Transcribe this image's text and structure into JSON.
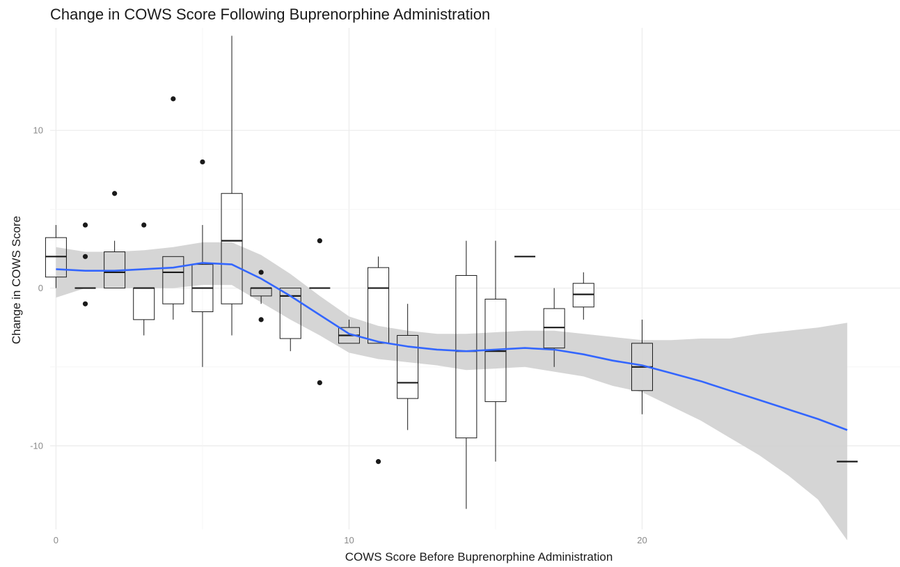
{
  "chart_data": {
    "type": "box",
    "title": "Change in COWS Score Following Buprenorphine Administration",
    "xlabel": "COWS Score Before Buprenorphine Administration",
    "ylabel": "Change in COWS Score",
    "x_ticks": [
      0,
      10,
      20
    ],
    "x_tick_labels": [
      "0",
      "10",
      "20"
    ],
    "y_ticks": [
      -10,
      0,
      10
    ],
    "y_tick_labels": [
      "-10",
      "0",
      "10"
    ],
    "xlim": [
      -0.2,
      28.8
    ],
    "ylim": [
      -15.3,
      16.5
    ],
    "grid": true,
    "legend": "none",
    "colors": {
      "smooth_line": "#3366ff",
      "ribbon": "#d3d3d3",
      "box_stroke": "#1a1a1a",
      "grid": "#ebebeb"
    },
    "boxes": [
      {
        "x": 0,
        "lower_whisker": 0,
        "q1": 0.7,
        "median": 2,
        "q3": 3.2,
        "upper_whisker": 4,
        "outliers": []
      },
      {
        "x": 1,
        "lower_whisker": 0,
        "q1": 0,
        "median": 0,
        "q3": 0,
        "upper_whisker": 0,
        "outliers": [
          4,
          2,
          -1
        ]
      },
      {
        "x": 2,
        "lower_whisker": 0,
        "q1": 0,
        "median": 1,
        "q3": 2.3,
        "upper_whisker": 3,
        "outliers": [
          6
        ]
      },
      {
        "x": 3,
        "lower_whisker": -3,
        "q1": -2,
        "median": 0,
        "q3": 0,
        "upper_whisker": 0,
        "outliers": [
          4
        ]
      },
      {
        "x": 4,
        "lower_whisker": -2,
        "q1": -1,
        "median": 1,
        "q3": 2,
        "upper_whisker": 2,
        "outliers": [
          12
        ]
      },
      {
        "x": 5,
        "lower_whisker": -5,
        "q1": -1.5,
        "median": 0,
        "q3": 1.5,
        "upper_whisker": 4,
        "outliers": [
          8
        ]
      },
      {
        "x": 6,
        "lower_whisker": -3,
        "q1": -1,
        "median": 3,
        "q3": 6,
        "upper_whisker": 16,
        "outliers": []
      },
      {
        "x": 7,
        "lower_whisker": -1,
        "q1": -0.5,
        "median": 0,
        "q3": 0,
        "upper_whisker": 0,
        "outliers": [
          1,
          -2
        ]
      },
      {
        "x": 8,
        "lower_whisker": -4,
        "q1": -3.2,
        "median": -0.5,
        "q3": 0,
        "upper_whisker": 0,
        "outliers": []
      },
      {
        "x": 9,
        "lower_whisker": 0,
        "q1": 0,
        "median": 0,
        "q3": 0,
        "upper_whisker": 0,
        "outliers": [
          3,
          -6
        ]
      },
      {
        "x": 10,
        "lower_whisker": -3.5,
        "q1": -3.5,
        "median": -3,
        "q3": -2.5,
        "upper_whisker": -2,
        "outliers": []
      },
      {
        "x": 11,
        "lower_whisker": -3.5,
        "q1": -3.5,
        "median": 0,
        "q3": 1.3,
        "upper_whisker": 2,
        "outliers": [
          -11
        ]
      },
      {
        "x": 12,
        "lower_whisker": -9,
        "q1": -7,
        "median": -6,
        "q3": -3,
        "upper_whisker": -1,
        "outliers": []
      },
      {
        "x": 14,
        "lower_whisker": -14,
        "q1": -9.5,
        "median": -4,
        "q3": 0.8,
        "upper_whisker": 3,
        "outliers": []
      },
      {
        "x": 15,
        "lower_whisker": -11,
        "q1": -7.2,
        "median": -4,
        "q3": -0.7,
        "upper_whisker": 3,
        "outliers": []
      },
      {
        "x": 16,
        "lower_whisker": 2,
        "q1": 2,
        "median": 2,
        "q3": 2,
        "upper_whisker": 2,
        "outliers": []
      },
      {
        "x": 17,
        "lower_whisker": -5,
        "q1": -3.8,
        "median": -2.5,
        "q3": -1.3,
        "upper_whisker": 0,
        "outliers": []
      },
      {
        "x": 18,
        "lower_whisker": -2,
        "q1": -1.2,
        "median": -0.4,
        "q3": 0.3,
        "upper_whisker": 1,
        "outliers": []
      },
      {
        "x": 20,
        "lower_whisker": -8,
        "q1": -6.5,
        "median": -5,
        "q3": -3.5,
        "upper_whisker": -2,
        "outliers": []
      },
      {
        "x": 27,
        "lower_whisker": -11,
        "q1": -11,
        "median": -11,
        "q3": -11,
        "upper_whisker": -11,
        "outliers": []
      }
    ],
    "smooth": {
      "x": [
        0,
        1,
        2,
        3,
        4,
        5,
        6,
        7,
        8,
        9,
        10,
        11,
        12,
        13,
        14,
        15,
        16,
        17,
        18,
        19,
        20,
        21,
        22,
        23,
        24,
        25,
        26,
        27
      ],
      "y": [
        1.2,
        1.1,
        1.1,
        1.2,
        1.3,
        1.6,
        1.5,
        0.6,
        -0.5,
        -1.7,
        -2.9,
        -3.4,
        -3.7,
        -3.9,
        -4.0,
        -3.9,
        -3.8,
        -3.9,
        -4.2,
        -4.6,
        -4.9,
        -5.4,
        -5.9,
        -6.5,
        -7.1,
        -7.7,
        -8.3,
        -9.0
      ],
      "upper": [
        2.6,
        2.3,
        2.3,
        2.4,
        2.6,
        2.9,
        2.9,
        2.1,
        0.9,
        -0.5,
        -1.8,
        -2.4,
        -2.7,
        -2.9,
        -2.9,
        -2.8,
        -2.7,
        -2.7,
        -2.9,
        -3.1,
        -3.3,
        -3.3,
        -3.2,
        -3.2,
        -2.9,
        -2.7,
        -2.5,
        -2.2
      ],
      "lower": [
        -0.6,
        0.0,
        0.0,
        0.0,
        0.0,
        0.2,
        0.2,
        -0.9,
        -2.0,
        -3.0,
        -4.1,
        -4.5,
        -4.7,
        -4.9,
        -5.2,
        -5.1,
        -5.0,
        -5.3,
        -5.6,
        -6.2,
        -6.6,
        -7.5,
        -8.4,
        -9.5,
        -10.6,
        -11.9,
        -13.4,
        -16.0
      ]
    }
  }
}
